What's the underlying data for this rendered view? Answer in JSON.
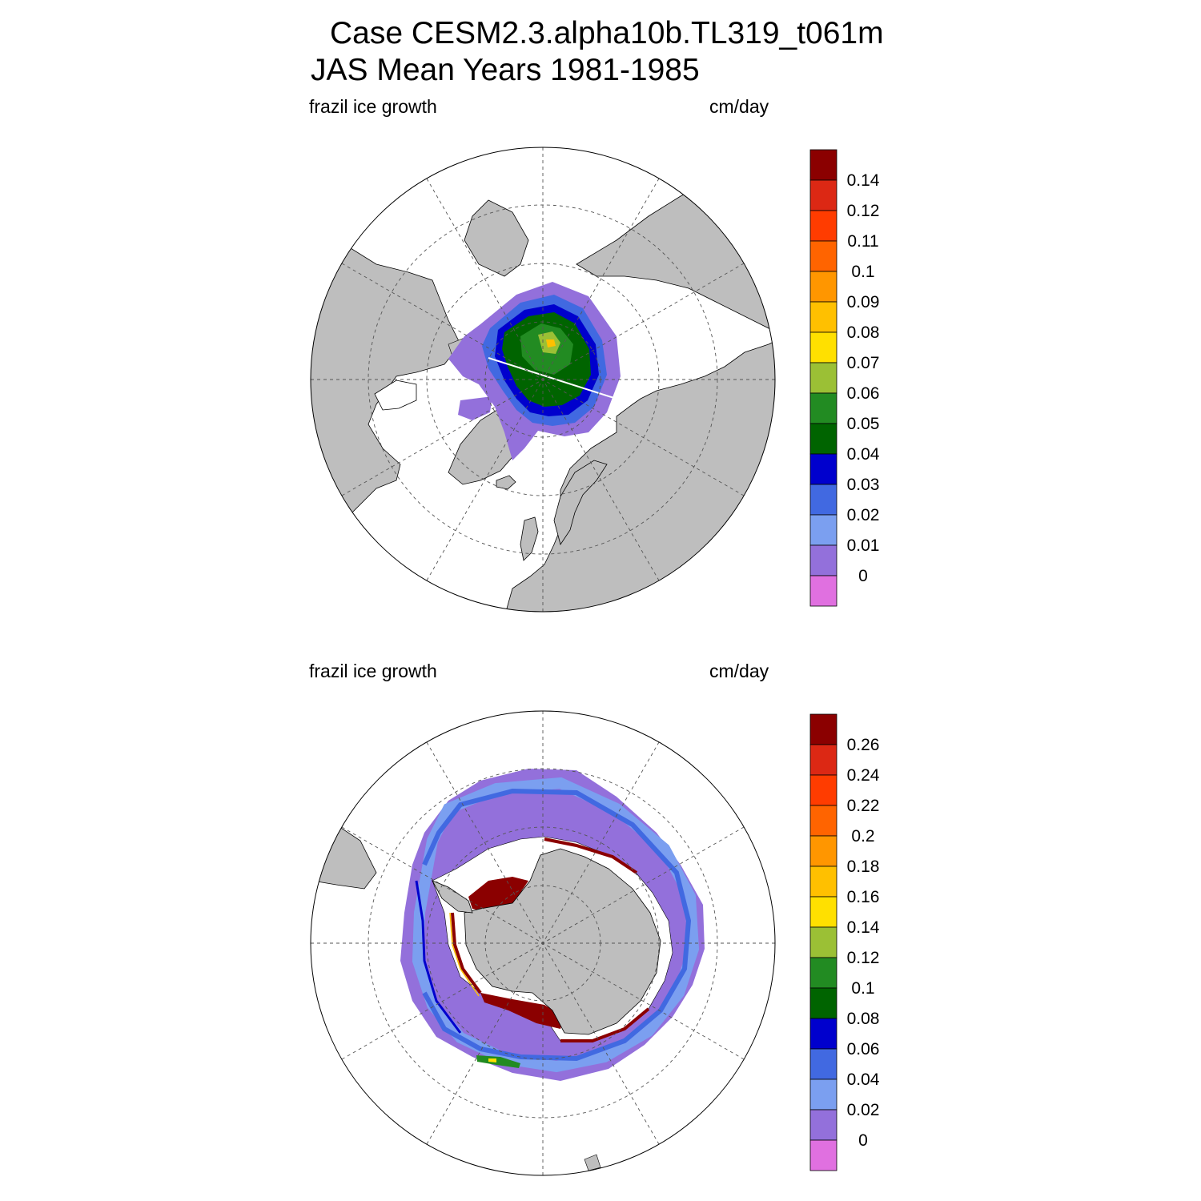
{
  "title": {
    "line1": "Case CESM2.3.alpha10b.TL319_t061m",
    "line2": "JAS Mean   Years 1981-1985"
  },
  "colors": {
    "land": "#bebebe",
    "no_data_ocean": "#ffffff",
    "grid": "#555555"
  },
  "panels": [
    {
      "id": "north",
      "variable_label": "frazil ice growth",
      "units_label": "cm/day",
      "colorbar": {
        "levels": [
          "0.14",
          "0.12",
          "0.11",
          "0.1",
          "0.09",
          "0.08",
          "0.07",
          "0.06",
          "0.05",
          "0.04",
          "0.03",
          "0.02",
          "0.01",
          "0"
        ],
        "colors": [
          "#8b0000",
          "#dc2814",
          "#ff3c00",
          "#ff6400",
          "#ff9600",
          "#ffc000",
          "#ffe000",
          "#9bc035",
          "#228b22",
          "#006400",
          "#0000cd",
          "#4169e1",
          "#7b9ff0",
          "#9370db",
          "#e070e0"
        ]
      }
    },
    {
      "id": "south",
      "variable_label": "frazil ice growth",
      "units_label": "cm/day",
      "colorbar": {
        "levels": [
          "0.26",
          "0.24",
          "0.22",
          "0.2",
          "0.18",
          "0.16",
          "0.14",
          "0.12",
          "0.1",
          "0.08",
          "0.06",
          "0.04",
          "0.02",
          "0"
        ],
        "colors": [
          "#8b0000",
          "#dc2814",
          "#ff3c00",
          "#ff6400",
          "#ff9600",
          "#ffc000",
          "#ffe000",
          "#9bc035",
          "#228b22",
          "#006400",
          "#0000cd",
          "#4169e1",
          "#7b9ff0",
          "#9370db",
          "#e070e0"
        ]
      }
    }
  ]
}
